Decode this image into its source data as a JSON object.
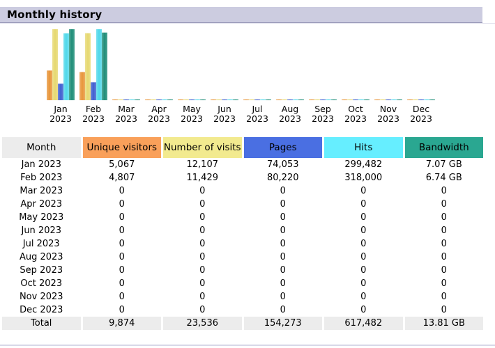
{
  "section": {
    "title": "Monthly history"
  },
  "colors": {
    "visitors": "#e8953a",
    "visits": "#e6d870",
    "pages": "#3f5fd0",
    "hits": "#4fd8ea",
    "bandwidth": "#1e8d78"
  },
  "table": {
    "headers": {
      "month": "Month",
      "visitors": "Unique visitors",
      "visits": "Number of visits",
      "pages": "Pages",
      "hits": "Hits",
      "bandwidth": "Bandwidth"
    },
    "rows": [
      {
        "month": "Jan 2023",
        "visitors": "5,067",
        "visits": "12,107",
        "pages": "74,053",
        "hits": "299,482",
        "bandwidth": "7.07 GB"
      },
      {
        "month": "Feb 2023",
        "visitors": "4,807",
        "visits": "11,429",
        "pages": "80,220",
        "hits": "318,000",
        "bandwidth": "6.74 GB"
      },
      {
        "month": "Mar 2023",
        "visitors": "0",
        "visits": "0",
        "pages": "0",
        "hits": "0",
        "bandwidth": "0"
      },
      {
        "month": "Apr 2023",
        "visitors": "0",
        "visits": "0",
        "pages": "0",
        "hits": "0",
        "bandwidth": "0"
      },
      {
        "month": "May 2023",
        "visitors": "0",
        "visits": "0",
        "pages": "0",
        "hits": "0",
        "bandwidth": "0"
      },
      {
        "month": "Jun 2023",
        "visitors": "0",
        "visits": "0",
        "pages": "0",
        "hits": "0",
        "bandwidth": "0"
      },
      {
        "month": "Jul 2023",
        "visitors": "0",
        "visits": "0",
        "pages": "0",
        "hits": "0",
        "bandwidth": "0"
      },
      {
        "month": "Aug 2023",
        "visitors": "0",
        "visits": "0",
        "pages": "0",
        "hits": "0",
        "bandwidth": "0"
      },
      {
        "month": "Sep 2023",
        "visitors": "0",
        "visits": "0",
        "pages": "0",
        "hits": "0",
        "bandwidth": "0"
      },
      {
        "month": "Oct 2023",
        "visitors": "0",
        "visits": "0",
        "pages": "0",
        "hits": "0",
        "bandwidth": "0"
      },
      {
        "month": "Nov 2023",
        "visitors": "0",
        "visits": "0",
        "pages": "0",
        "hits": "0",
        "bandwidth": "0"
      },
      {
        "month": "Dec 2023",
        "visitors": "0",
        "visits": "0",
        "pages": "0",
        "hits": "0",
        "bandwidth": "0"
      }
    ],
    "total": {
      "label": "Total",
      "visitors": "9,874",
      "visits": "23,536",
      "pages": "154,273",
      "hits": "617,482",
      "bandwidth": "13.81 GB"
    }
  },
  "chart_data": {
    "type": "bar",
    "categories": [
      [
        "Jan",
        "2023"
      ],
      [
        "Feb",
        "2023"
      ],
      [
        "Mar",
        "2023"
      ],
      [
        "Apr",
        "2023"
      ],
      [
        "May",
        "2023"
      ],
      [
        "Jun",
        "2023"
      ],
      [
        "Jul",
        "2023"
      ],
      [
        "Aug",
        "2023"
      ],
      [
        "Sep",
        "2023"
      ],
      [
        "Oct",
        "2023"
      ],
      [
        "Nov",
        "2023"
      ],
      [
        "Dec",
        "2023"
      ]
    ],
    "series": [
      {
        "key": "visitors",
        "values": [
          5067,
          4807,
          0,
          0,
          0,
          0,
          0,
          0,
          0,
          0,
          0,
          0
        ]
      },
      {
        "key": "visits",
        "values": [
          12107,
          11429,
          0,
          0,
          0,
          0,
          0,
          0,
          0,
          0,
          0,
          0
        ]
      },
      {
        "key": "pages",
        "values": [
          74053,
          80220,
          0,
          0,
          0,
          0,
          0,
          0,
          0,
          0,
          0,
          0
        ]
      },
      {
        "key": "hits",
        "values": [
          299482,
          318000,
          0,
          0,
          0,
          0,
          0,
          0,
          0,
          0,
          0,
          0
        ]
      },
      {
        "key": "bandwidth",
        "values": [
          7.07,
          6.74,
          0,
          0,
          0,
          0,
          0,
          0,
          0,
          0,
          0,
          0
        ]
      }
    ],
    "scale_groups": [
      [
        "visitors",
        "visits"
      ],
      [
        "pages",
        "hits"
      ],
      [
        "bandwidth"
      ]
    ]
  }
}
